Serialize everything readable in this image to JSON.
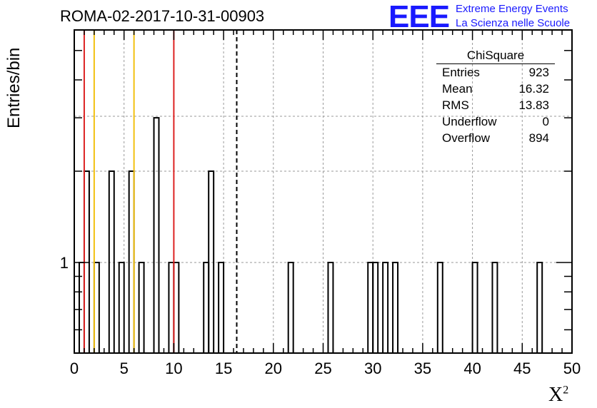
{
  "header": {
    "title": "ROMA-02-2017-10-31-00903",
    "logo_text": "EEE",
    "logo_line1": "Extreme Energy Events",
    "logo_line2": "La Scienza nelle Scuole"
  },
  "stats_box": {
    "name": "ChiSquare",
    "rows": [
      {
        "label": "Entries",
        "value": "923"
      },
      {
        "label": "Mean",
        "value": "16.32"
      },
      {
        "label": "RMS",
        "value": "13.83"
      },
      {
        "label": "Underflow",
        "value": "0"
      },
      {
        "label": "Overflow",
        "value": "894"
      }
    ]
  },
  "chart_data": {
    "type": "bar",
    "title": "ROMA-02-2017-10-31-00903",
    "xlabel": "X",
    "xlabel_superscript": "2",
    "ylabel": "Entries/bin",
    "xlim": [
      0,
      50
    ],
    "ylog": true,
    "grid": true,
    "bin_width": 0.5,
    "x_ticks": [
      "0",
      "5",
      "10",
      "15",
      "20",
      "25",
      "30",
      "35",
      "40",
      "45",
      "50"
    ],
    "y_tick_labels": [
      "1"
    ],
    "bins": [
      {
        "x": 0.5,
        "count": 1
      },
      {
        "x": 1.0,
        "count": 2
      },
      {
        "x": 2.0,
        "count": 1
      },
      {
        "x": 3.5,
        "count": 2
      },
      {
        "x": 4.5,
        "count": 1
      },
      {
        "x": 5.5,
        "count": 2
      },
      {
        "x": 6.5,
        "count": 1
      },
      {
        "x": 8.0,
        "count": 3
      },
      {
        "x": 9.5,
        "count": 1
      },
      {
        "x": 10.0,
        "count": 1
      },
      {
        "x": 13.0,
        "count": 1
      },
      {
        "x": 13.5,
        "count": 2
      },
      {
        "x": 14.5,
        "count": 1
      },
      {
        "x": 21.5,
        "count": 1
      },
      {
        "x": 25.5,
        "count": 1
      },
      {
        "x": 29.5,
        "count": 1
      },
      {
        "x": 30.0,
        "count": 1
      },
      {
        "x": 31.0,
        "count": 1
      },
      {
        "x": 32.0,
        "count": 1
      },
      {
        "x": 36.5,
        "count": 1
      },
      {
        "x": 40.0,
        "count": 1
      },
      {
        "x": 42.0,
        "count": 1
      },
      {
        "x": 46.5,
        "count": 1
      }
    ],
    "reference_lines": [
      {
        "x": 1.0,
        "color": "#dd2222",
        "style": "solid"
      },
      {
        "x": 10.0,
        "color": "#dd2222",
        "style": "solid"
      },
      {
        "x": 2.0,
        "color": "#f2c010",
        "style": "solid"
      },
      {
        "x": 6.0,
        "color": "#f2c010",
        "style": "solid"
      },
      {
        "x": 16.32,
        "color": "#000000",
        "style": "dashed"
      }
    ]
  }
}
